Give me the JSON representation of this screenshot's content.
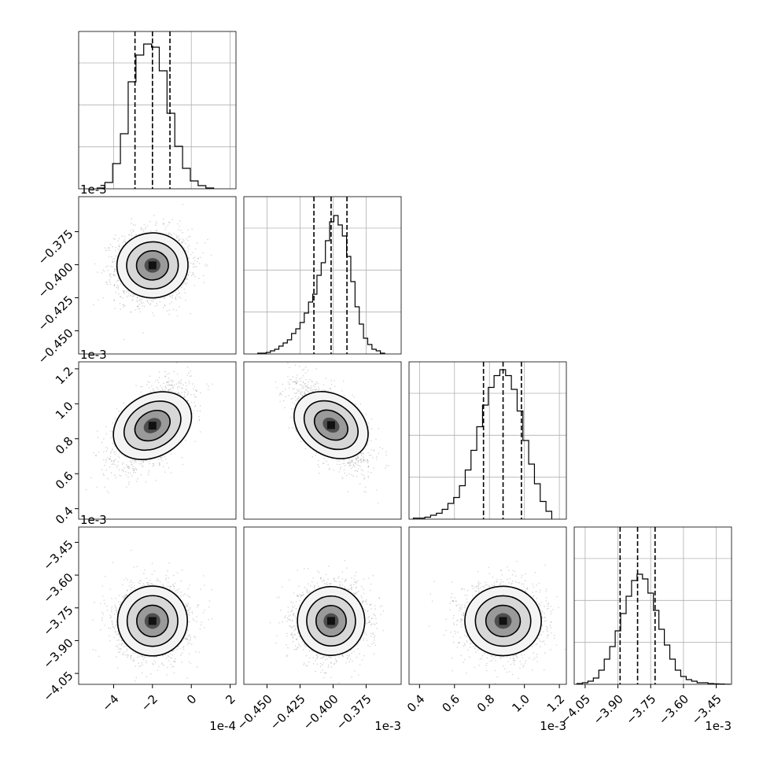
{
  "chart_data": {
    "type": "corner",
    "title": "",
    "grid": true,
    "parameters": [
      {
        "range": [
          -5.8,
          2.3
        ],
        "multiplier_label": "1e-4",
        "ticks": [
          -4,
          -2,
          0,
          2
        ],
        "tick_labels": [
          "−4",
          "−2",
          "0",
          "2"
        ],
        "quantiles": [
          -2.9,
          -2.0,
          -1.1
        ],
        "hist_centers": [
          -4.65,
          -4.25,
          -3.85,
          -3.45,
          -3.05,
          -2.65,
          -2.25,
          -1.85,
          -1.45,
          -1.05,
          -0.65,
          -0.25,
          0.15,
          0.55,
          0.95
        ],
        "hist_counts": [
          0.5,
          4,
          16,
          35,
          68,
          85,
          92,
          90,
          75,
          48,
          27,
          13,
          5,
          2,
          0.5
        ],
        "hist_max": 100
      },
      {
        "range": [
          -0.4675,
          -0.3485
        ],
        "multiplier_label": "1e-3",
        "ticks": [
          -0.45,
          -0.425,
          -0.4,
          -0.375
        ],
        "tick_labels": [
          "−0.450",
          "−0.425",
          "−0.400",
          "−0.375"
        ],
        "quantiles": [
          -0.4145,
          -0.4015,
          -0.3895
        ],
        "hist_centers": [
          -0.4554,
          -0.4522,
          -0.449,
          -0.4458,
          -0.4426,
          -0.4394,
          -0.4362,
          -0.433,
          -0.4298,
          -0.4266,
          -0.4234,
          -0.4202,
          -0.417,
          -0.4138,
          -0.4106,
          -0.4074,
          -0.4042,
          -0.401,
          -0.3978,
          -0.3946,
          -0.3914,
          -0.3882,
          -0.385,
          -0.3818,
          -0.3786,
          -0.3754,
          -0.3722,
          -0.369,
          -0.3658,
          -0.3626
        ],
        "hist_counts": [
          0.5,
          0.5,
          1,
          2,
          3,
          5,
          7,
          9,
          13,
          16,
          20,
          26,
          33,
          38,
          50,
          58,
          72,
          84,
          88,
          82,
          75,
          62,
          46,
          30,
          19,
          10,
          6,
          3,
          2,
          0.5
        ],
        "hist_max": 100
      },
      {
        "range": [
          0.34,
          1.24
        ],
        "multiplier_label": "1e-3",
        "ticks": [
          0.4,
          0.6,
          0.8,
          1.0,
          1.2
        ],
        "tick_labels": [
          "0.4",
          "0.6",
          "0.8",
          "1.0",
          "1.2"
        ],
        "quantiles": [
          0.766,
          0.878,
          0.983
        ],
        "hist_centers": [
          0.381,
          0.414,
          0.447,
          0.48,
          0.513,
          0.546,
          0.579,
          0.612,
          0.645,
          0.678,
          0.711,
          0.744,
          0.777,
          0.81,
          0.843,
          0.876,
          0.909,
          0.942,
          0.975,
          1.008,
          1.041,
          1.074,
          1.107,
          1.14
        ],
        "hist_counts": [
          0.5,
          0.5,
          1,
          2,
          3,
          5,
          8,
          11,
          17,
          25,
          35,
          47,
          58,
          67,
          73,
          76,
          73,
          66,
          55,
          40,
          28,
          18,
          9,
          4
        ],
        "hist_max": 80
      },
      {
        "range": [
          -4.1,
          -3.38
        ],
        "multiplier_label": "1e-3",
        "ticks": [
          -4.05,
          -3.9,
          -3.75,
          -3.6,
          -3.45
        ],
        "tick_labels": [
          "−4.05",
          "−3.90",
          "−3.75",
          "−3.60",
          "−3.45"
        ],
        "quantiles": [
          -3.89,
          -3.81,
          -3.73
        ],
        "hist_centers": [
          -4.075,
          -4.05,
          -4.025,
          -4.0,
          -3.975,
          -3.95,
          -3.925,
          -3.9,
          -3.875,
          -3.85,
          -3.825,
          -3.8,
          -3.775,
          -3.75,
          -3.725,
          -3.7,
          -3.675,
          -3.65,
          -3.625,
          -3.6,
          -3.575,
          -3.55,
          -3.525,
          -3.5,
          -3.475,
          -3.45,
          -3.425,
          -3.4
        ],
        "hist_counts": [
          0.5,
          1,
          2,
          4,
          9,
          16,
          24,
          34,
          45,
          56,
          66,
          70,
          67,
          58,
          47,
          35,
          25,
          16,
          9,
          5,
          3,
          2,
          1,
          1,
          0.5,
          0.3,
          0.2,
          0.1
        ],
        "hist_max": 100
      }
    ],
    "pairs": [
      {
        "row": 1,
        "col": 0,
        "mean": [
          -2.0,
          -0.4005
        ],
        "corr": 0.05
      },
      {
        "row": 2,
        "col": 0,
        "mean": [
          -2.0,
          0.875
        ],
        "corr": 0.55
      },
      {
        "row": 2,
        "col": 1,
        "mean": [
          -0.4015,
          0.878
        ],
        "corr": -0.6
      },
      {
        "row": 3,
        "col": 0,
        "mean": [
          -2.0,
          -3.81
        ],
        "corr": 0.0
      },
      {
        "row": 3,
        "col": 1,
        "mean": [
          -0.4015,
          -3.81
        ],
        "corr": 0.05
      },
      {
        "row": 3,
        "col": 2,
        "mean": [
          0.878,
          -3.81
        ],
        "corr": -0.02
      }
    ],
    "histogram_style": "step",
    "quantile_line_style": "dashed",
    "contour_levels": 3
  }
}
